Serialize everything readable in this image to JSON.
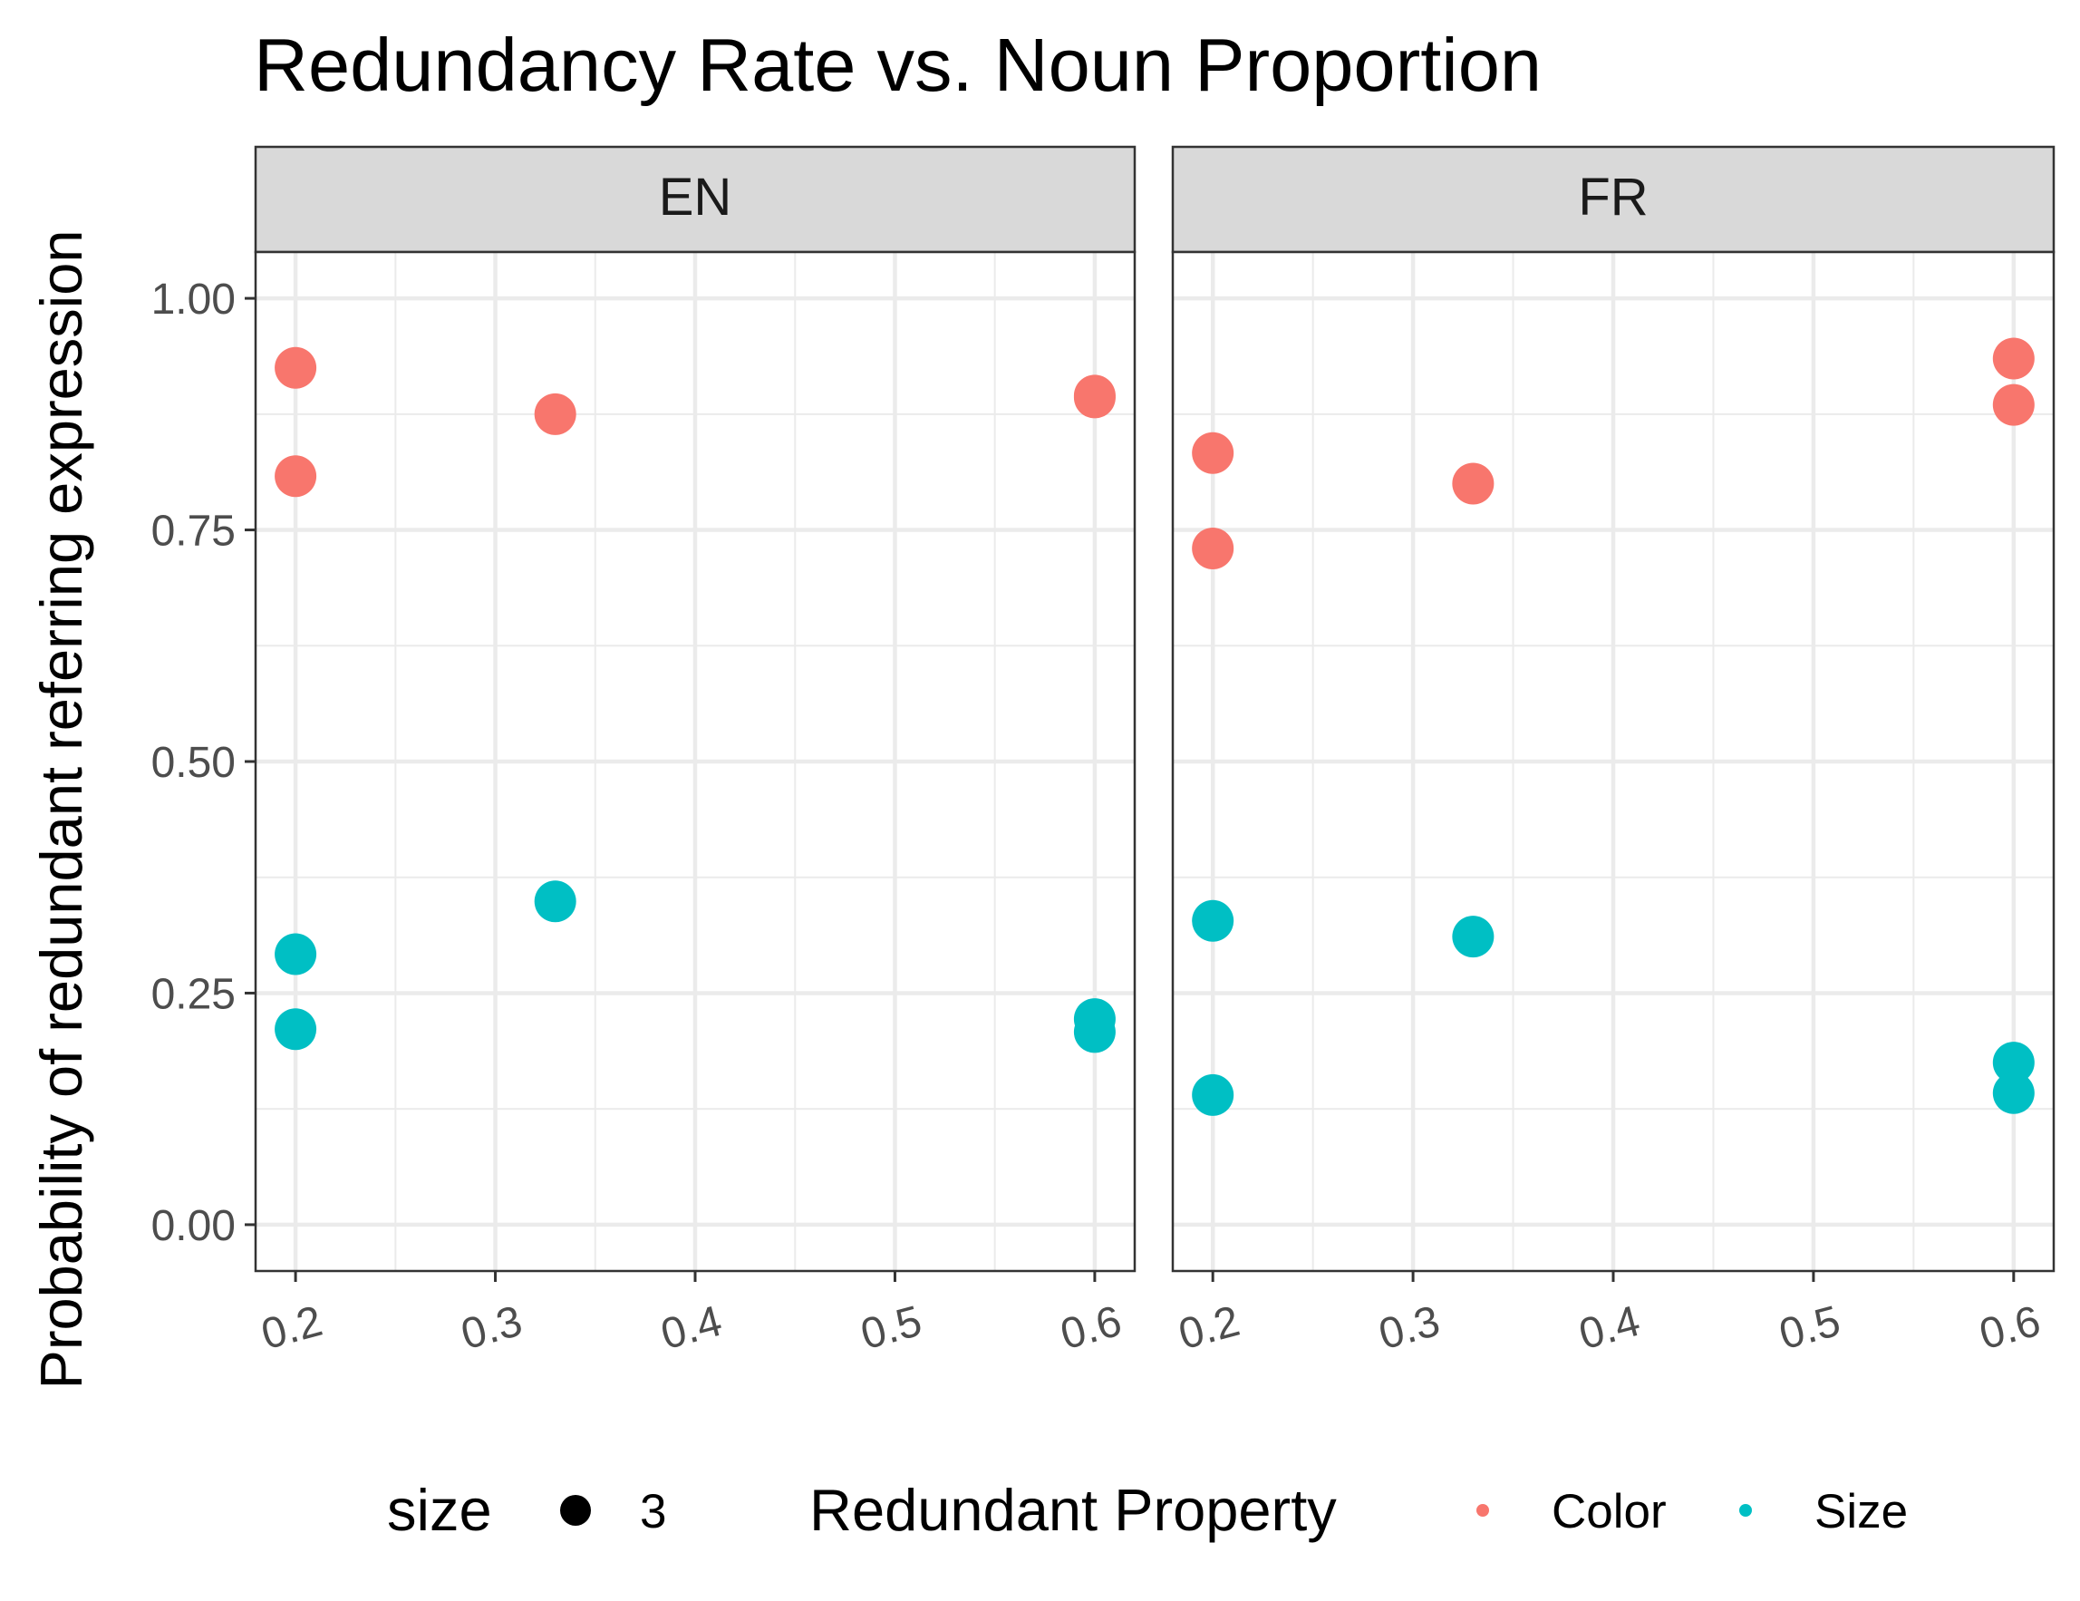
{
  "chart_data": {
    "type": "scatter",
    "title": "Redundancy Rate vs. Noun Proportion",
    "xlabel": "",
    "ylabel": "Probability of redundant referring expression",
    "xlim": [
      0.18,
      0.62
    ],
    "ylim": [
      -0.05,
      1.05
    ],
    "x_ticks": [
      0.2,
      0.3,
      0.4,
      0.5,
      0.6
    ],
    "x_tick_labels": [
      "0.2",
      "0.3",
      "0.4",
      "0.5",
      "0.6"
    ],
    "y_ticks": [
      0,
      0.25,
      0.5,
      0.75,
      1.0
    ],
    "y_tick_labels": [
      "0.00",
      "0.25",
      "0.50",
      "0.75",
      "1.00"
    ],
    "grid": true,
    "colors": {
      "Color": "#F8766D",
      "Size": "#00BFC4"
    },
    "facets": [
      {
        "label": "EN",
        "points": [
          {
            "series": "Color",
            "x": 0.2,
            "y": 0.925
          },
          {
            "series": "Color",
            "x": 0.2,
            "y": 0.808
          },
          {
            "series": "Color",
            "x": 0.33,
            "y": 0.875
          },
          {
            "series": "Color",
            "x": 0.6,
            "y": 0.893
          },
          {
            "series": "Color",
            "x": 0.6,
            "y": 0.895
          },
          {
            "series": "Size",
            "x": 0.2,
            "y": 0.292
          },
          {
            "series": "Size",
            "x": 0.2,
            "y": 0.211
          },
          {
            "series": "Size",
            "x": 0.33,
            "y": 0.349
          },
          {
            "series": "Size",
            "x": 0.6,
            "y": 0.222
          },
          {
            "series": "Size",
            "x": 0.6,
            "y": 0.208
          }
        ]
      },
      {
        "label": "FR",
        "points": [
          {
            "series": "Color",
            "x": 0.2,
            "y": 0.833
          },
          {
            "series": "Color",
            "x": 0.2,
            "y": 0.73
          },
          {
            "series": "Color",
            "x": 0.33,
            "y": 0.8
          },
          {
            "series": "Color",
            "x": 0.6,
            "y": 0.935
          },
          {
            "series": "Color",
            "x": 0.6,
            "y": 0.885
          },
          {
            "series": "Size",
            "x": 0.2,
            "y": 0.328
          },
          {
            "series": "Size",
            "x": 0.2,
            "y": 0.14
          },
          {
            "series": "Size",
            "x": 0.33,
            "y": 0.311
          },
          {
            "series": "Size",
            "x": 0.6,
            "y": 0.175
          },
          {
            "series": "Size",
            "x": 0.6,
            "y": 0.142
          }
        ]
      }
    ],
    "legend": {
      "placement": "bottom",
      "size_title": "size",
      "size_value": "3",
      "color_title": "Redundant Property",
      "entries": [
        "Color",
        "Size"
      ]
    }
  }
}
